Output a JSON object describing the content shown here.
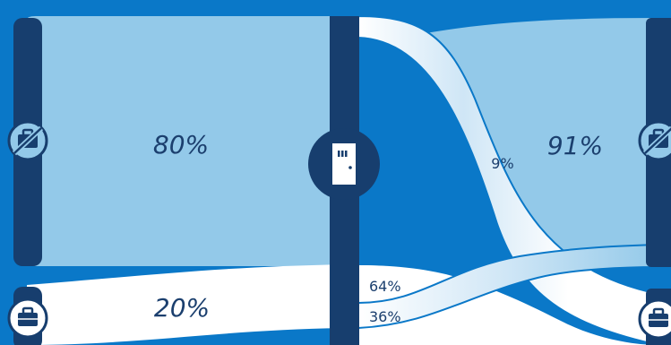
{
  "labels": {
    "left_top": "80%",
    "left_bottom": "20%",
    "right_top": "91%",
    "cross_down": "9%",
    "bottom_stay": "64%",
    "bottom_up": "36%"
  },
  "icons": {
    "left_top": "no-briefcase-icon",
    "left_bottom": "briefcase-icon",
    "center": "door-icon",
    "right_top": "no-briefcase-icon",
    "right_bottom": "briefcase-icon"
  },
  "colors": {
    "background": "#0a78c8",
    "bar": "#173e6e",
    "light_fill": "#93c9e9",
    "white_fill": "#ffffff"
  }
}
